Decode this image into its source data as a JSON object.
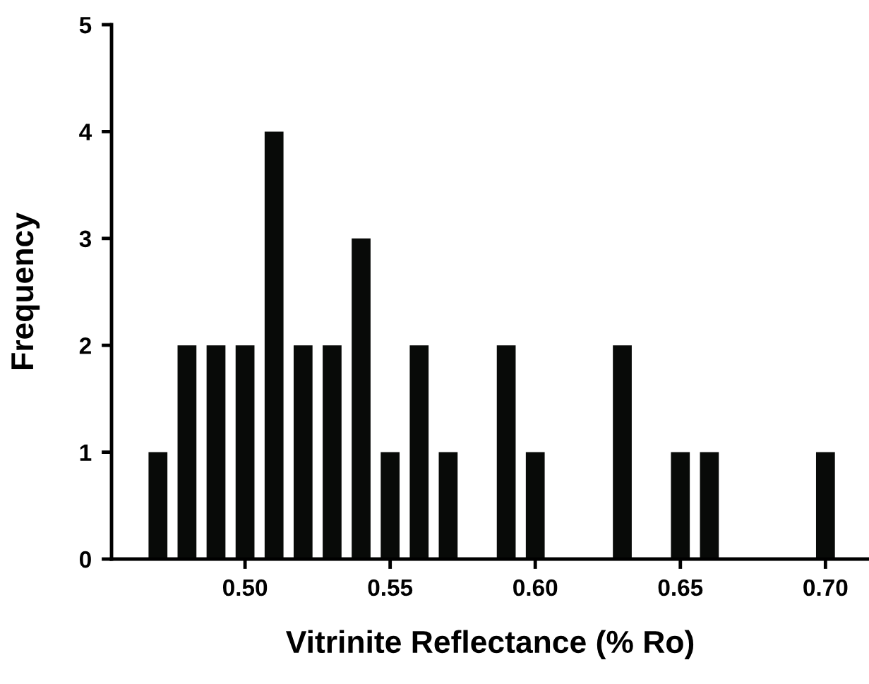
{
  "chart_data": {
    "type": "bar",
    "xlabel": "Vitrinite Reflectance (% Ro)",
    "ylabel": "Frequency",
    "x": [
      0.47,
      0.48,
      0.49,
      0.5,
      0.51,
      0.52,
      0.53,
      0.54,
      0.55,
      0.56,
      0.57,
      0.59,
      0.6,
      0.63,
      0.65,
      0.66,
      0.7
    ],
    "values": [
      1,
      2,
      2,
      2,
      4,
      2,
      2,
      3,
      1,
      2,
      1,
      2,
      1,
      2,
      1,
      1,
      1
    ],
    "color": "#080a08",
    "xlim": [
      0.454,
      0.715
    ],
    "xticks": [
      {
        "value": 0.5,
        "label": "0.50"
      },
      {
        "value": 0.55,
        "label": "0.55"
      },
      {
        "value": 0.6,
        "label": "0.60"
      },
      {
        "value": 0.65,
        "label": "0.65"
      },
      {
        "value": 0.7,
        "label": "0.70"
      }
    ],
    "ylim": [
      0,
      5
    ],
    "yticks": [
      0,
      1,
      2,
      3,
      4,
      5
    ],
    "grid": false
  }
}
